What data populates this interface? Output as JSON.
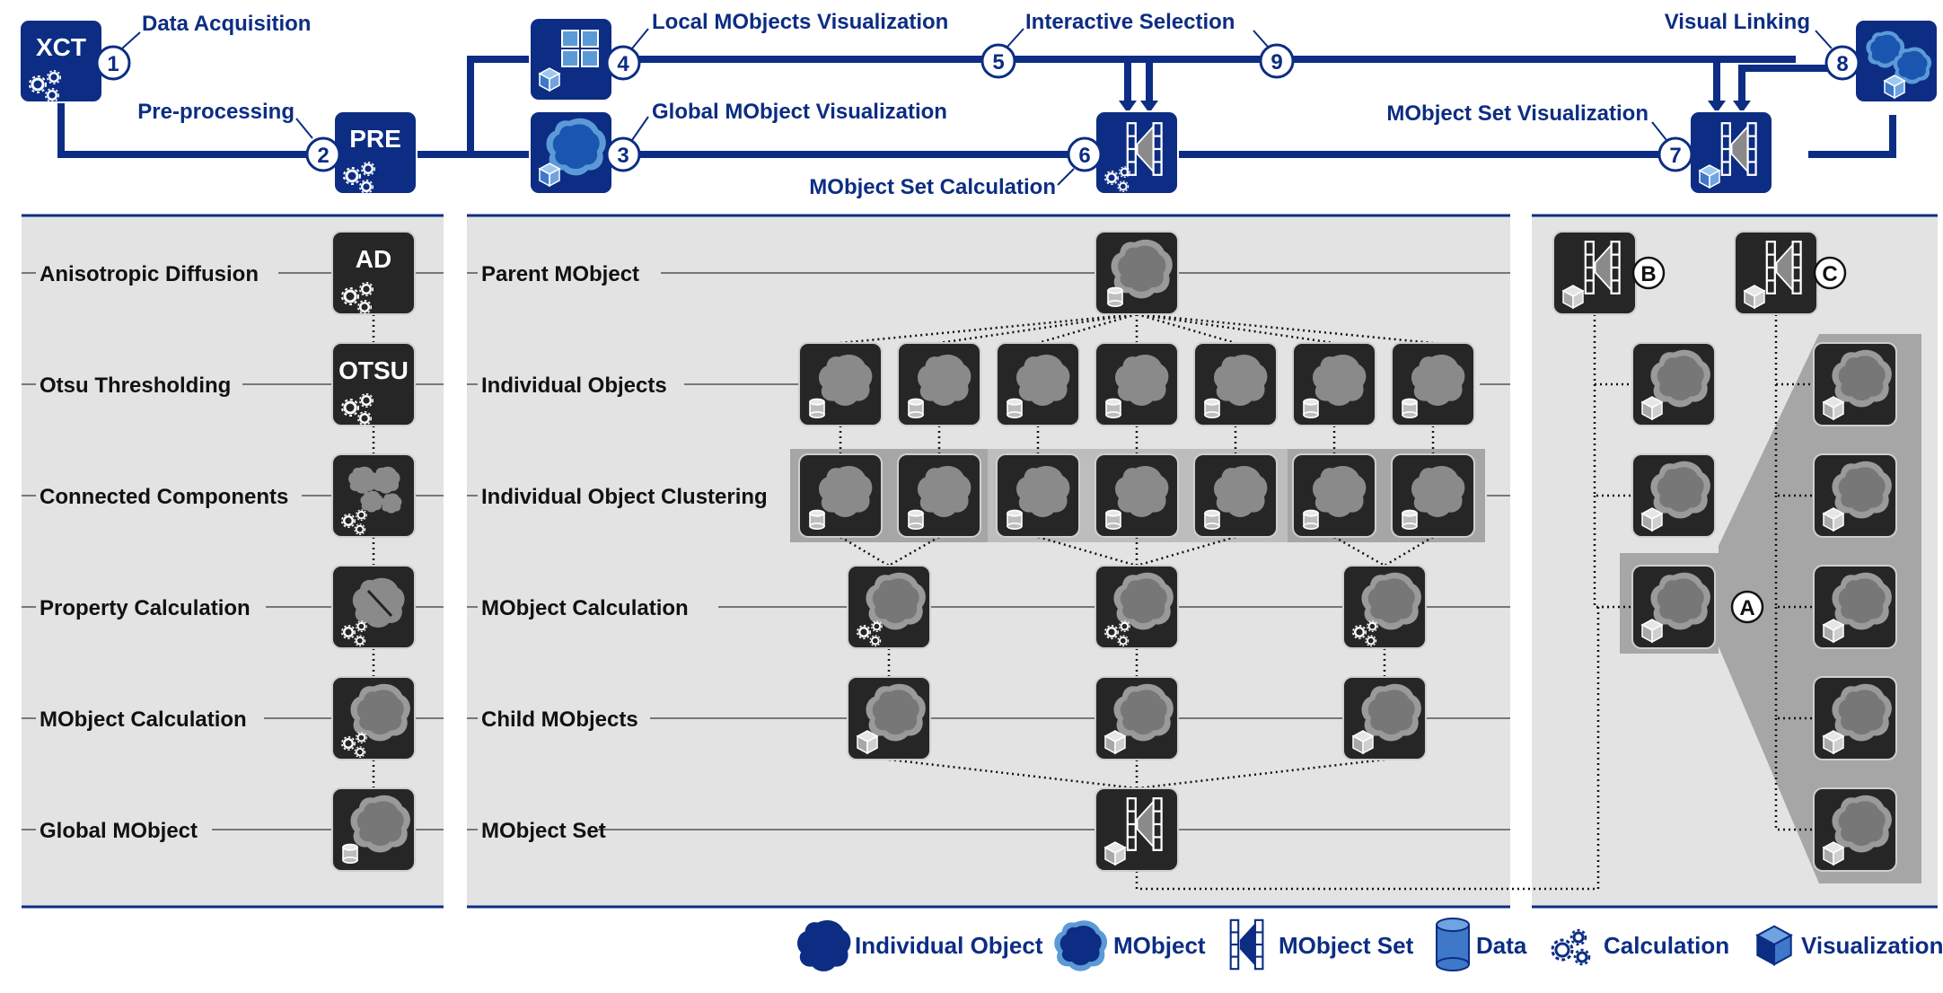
{
  "colors": {
    "primary_blue": "#0c2d83",
    "node_dark": "#262626",
    "object_gray": "#7a7a7a",
    "panel_gray": "#e3e3e3",
    "highlight_gray": "#9e9e9e"
  },
  "pipeline": {
    "nodes": {
      "xct": "XCT",
      "pre": "PRE"
    },
    "steps": [
      {
        "num": "1",
        "label": "Data Acquisition"
      },
      {
        "num": "2",
        "label": "Pre-processing"
      },
      {
        "num": "3",
        "label": "Global MObject Visualization"
      },
      {
        "num": "4",
        "label": "Local MObjects Visualization"
      },
      {
        "num": "5",
        "label": "Interactive Selection"
      },
      {
        "num": "6",
        "label": "MObject Set Calculation"
      },
      {
        "num": "7",
        "label": "MObject Set Visualization"
      },
      {
        "num": "8",
        "label": "Visual Linking"
      },
      {
        "num": "9",
        "label": ""
      }
    ]
  },
  "left_panel": {
    "rows": [
      {
        "label": "Anisotropic Diffusion",
        "node_text": "AD",
        "icon": "calculation-icon"
      },
      {
        "label": "Otsu Thresholding",
        "node_text": "OTSU",
        "icon": "calculation-icon"
      },
      {
        "label": "Connected Components",
        "node_text": "",
        "icon": "calculation-icon"
      },
      {
        "label": "Property Calculation",
        "node_text": "",
        "icon": "calculation-icon"
      },
      {
        "label": "MObject Calculation",
        "node_text": "",
        "icon": "calculation-icon"
      },
      {
        "label": "Global MObject",
        "node_text": "",
        "icon": "data-icon"
      }
    ]
  },
  "middle_panel": {
    "rows": [
      {
        "label": "Parent MObject"
      },
      {
        "label": "Individual Objects"
      },
      {
        "label": "Individual Object Clustering"
      },
      {
        "label": "MObject Calculation"
      },
      {
        "label": "Child MObjects"
      },
      {
        "label": "MObject Set"
      }
    ]
  },
  "right_panel": {
    "markers": [
      "A",
      "B",
      "C"
    ]
  },
  "legend": [
    {
      "label": "Individual Object",
      "icon": "individual-object-icon"
    },
    {
      "label": "MObject",
      "icon": "mobject-icon"
    },
    {
      "label": "MObject Set",
      "icon": "mobject-set-icon"
    },
    {
      "label": "Data",
      "icon": "data-icon"
    },
    {
      "label": "Calculation",
      "icon": "calculation-icon"
    },
    {
      "label": "Visualization",
      "icon": "visualization-icon"
    }
  ]
}
